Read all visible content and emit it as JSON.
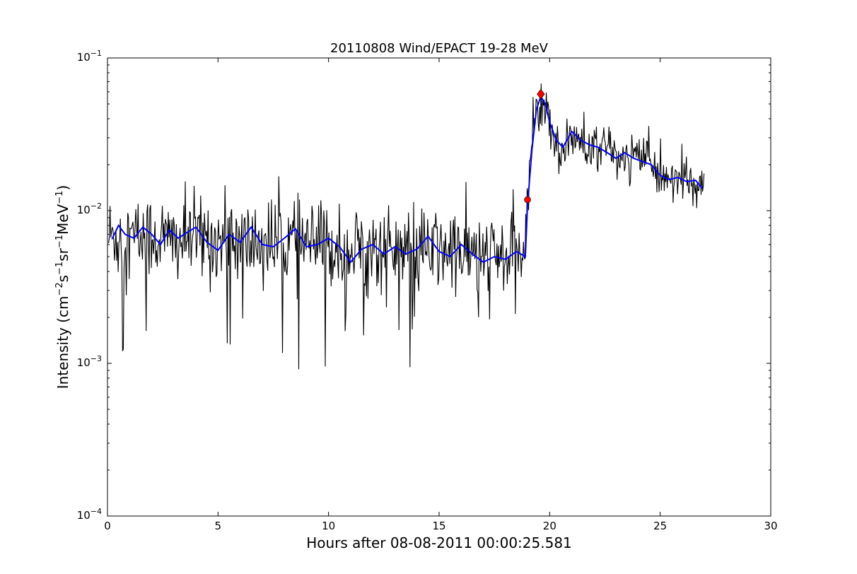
{
  "chart_data": {
    "type": "line",
    "title": "20110808 Wind/EPACT 19-28 MeV",
    "xlabel": "Hours after 08-08-2011 00:00:25.581",
    "ylabel_parts": [
      "Intensity (cm",
      "−2",
      "s",
      "−1",
      "sr",
      "−1",
      "MeV",
      "−1",
      ")"
    ],
    "xlim": [
      0,
      30
    ],
    "ylim": [
      0.0001,
      0.1
    ],
    "yscale": "log",
    "grid": false,
    "x_ticks": [
      {
        "value": 0,
        "label": "0"
      },
      {
        "value": 5,
        "label": "5"
      },
      {
        "value": 10,
        "label": "10"
      },
      {
        "value": 15,
        "label": "15"
      },
      {
        "value": 20,
        "label": "20"
      },
      {
        "value": 25,
        "label": "25"
      },
      {
        "value": 30,
        "label": "30"
      }
    ],
    "y_ticks": [
      {
        "value": 0.0001,
        "base": "10",
        "exp": "−4"
      },
      {
        "value": 0.001,
        "base": "10",
        "exp": "−3"
      },
      {
        "value": 0.01,
        "base": "10",
        "exp": "−2"
      },
      {
        "value": 0.1,
        "base": "10",
        "exp": "−1"
      }
    ],
    "series": [
      {
        "role": "raw",
        "color": "#000000",
        "x_start": 0.05,
        "x_end": 27.0,
        "baseline": [
          [
            0.0,
            0.0068
          ],
          [
            1.0,
            0.0066
          ],
          [
            2.0,
            0.0068
          ],
          [
            3.0,
            0.0063
          ],
          [
            4.0,
            0.0067
          ],
          [
            5.0,
            0.0064
          ],
          [
            6.0,
            0.0062
          ],
          [
            7.0,
            0.0061
          ],
          [
            8.0,
            0.0063
          ],
          [
            9.0,
            0.006
          ],
          [
            10.0,
            0.0058
          ],
          [
            11.0,
            0.0055
          ],
          [
            12.0,
            0.0056
          ],
          [
            13.0,
            0.0055
          ],
          [
            14.0,
            0.0054
          ],
          [
            15.0,
            0.0055
          ],
          [
            16.0,
            0.0053
          ],
          [
            17.0,
            0.005
          ],
          [
            18.0,
            0.0049
          ],
          [
            18.9,
            0.0052
          ],
          [
            19.0,
            0.012
          ],
          [
            19.1,
            0.022
          ],
          [
            19.3,
            0.04
          ],
          [
            19.5,
            0.055
          ],
          [
            19.7,
            0.052
          ],
          [
            20.0,
            0.036
          ],
          [
            20.3,
            0.027
          ],
          [
            20.6,
            0.026
          ],
          [
            21.0,
            0.03
          ],
          [
            21.5,
            0.027
          ],
          [
            22.0,
            0.026
          ],
          [
            22.5,
            0.025
          ],
          [
            23.0,
            0.023
          ],
          [
            23.5,
            0.022
          ],
          [
            24.0,
            0.022
          ],
          [
            24.5,
            0.021
          ],
          [
            25.0,
            0.017
          ],
          [
            25.5,
            0.016
          ],
          [
            26.0,
            0.016
          ],
          [
            26.5,
            0.015
          ],
          [
            27.0,
            0.014
          ]
        ]
      },
      {
        "role": "smoothed",
        "color": "#0000ff",
        "points": [
          [
            0.2,
            0.0065
          ],
          [
            0.5,
            0.008
          ],
          [
            0.8,
            0.007
          ],
          [
            1.2,
            0.0066
          ],
          [
            1.6,
            0.0078
          ],
          [
            2.0,
            0.007
          ],
          [
            2.4,
            0.006
          ],
          [
            2.8,
            0.0075
          ],
          [
            3.2,
            0.0066
          ],
          [
            3.6,
            0.0072
          ],
          [
            4.0,
            0.0078
          ],
          [
            4.5,
            0.0062
          ],
          [
            5.0,
            0.0055
          ],
          [
            5.5,
            0.007
          ],
          [
            6.0,
            0.0062
          ],
          [
            6.5,
            0.0078
          ],
          [
            7.0,
            0.006
          ],
          [
            7.5,
            0.0058
          ],
          [
            8.0,
            0.0066
          ],
          [
            8.5,
            0.0076
          ],
          [
            9.0,
            0.0058
          ],
          [
            9.5,
            0.006
          ],
          [
            10.0,
            0.0066
          ],
          [
            10.5,
            0.0058
          ],
          [
            11.0,
            0.0046
          ],
          [
            11.5,
            0.0056
          ],
          [
            12.0,
            0.006
          ],
          [
            12.5,
            0.0052
          ],
          [
            13.0,
            0.0058
          ],
          [
            13.5,
            0.0052
          ],
          [
            14.0,
            0.0056
          ],
          [
            14.5,
            0.0068
          ],
          [
            15.0,
            0.0054
          ],
          [
            15.5,
            0.005
          ],
          [
            16.0,
            0.006
          ],
          [
            16.5,
            0.0052
          ],
          [
            17.0,
            0.0046
          ],
          [
            17.5,
            0.005
          ],
          [
            18.0,
            0.0048
          ],
          [
            18.5,
            0.0054
          ],
          [
            18.9,
            0.005
          ],
          [
            19.0,
            0.011
          ],
          [
            19.2,
            0.025
          ],
          [
            19.4,
            0.046
          ],
          [
            19.6,
            0.056
          ],
          [
            19.8,
            0.05
          ],
          [
            20.0,
            0.038
          ],
          [
            20.3,
            0.029
          ],
          [
            20.6,
            0.026
          ],
          [
            21.0,
            0.033
          ],
          [
            21.4,
            0.029
          ],
          [
            21.8,
            0.027
          ],
          [
            22.2,
            0.026
          ],
          [
            22.6,
            0.024
          ],
          [
            23.0,
            0.022
          ],
          [
            23.4,
            0.024
          ],
          [
            23.8,
            0.022
          ],
          [
            24.2,
            0.021
          ],
          [
            24.6,
            0.02
          ],
          [
            25.0,
            0.017
          ],
          [
            25.4,
            0.016
          ],
          [
            25.8,
            0.0165
          ],
          [
            26.2,
            0.0155
          ],
          [
            26.6,
            0.0158
          ],
          [
            26.9,
            0.014
          ]
        ]
      }
    ],
    "markers": [
      {
        "x": 19.0,
        "y": 0.0118,
        "shape": "circle",
        "color": "#ff0000"
      },
      {
        "x": 19.6,
        "y": 0.058,
        "shape": "diamond",
        "color": "#ff0000"
      }
    ]
  }
}
